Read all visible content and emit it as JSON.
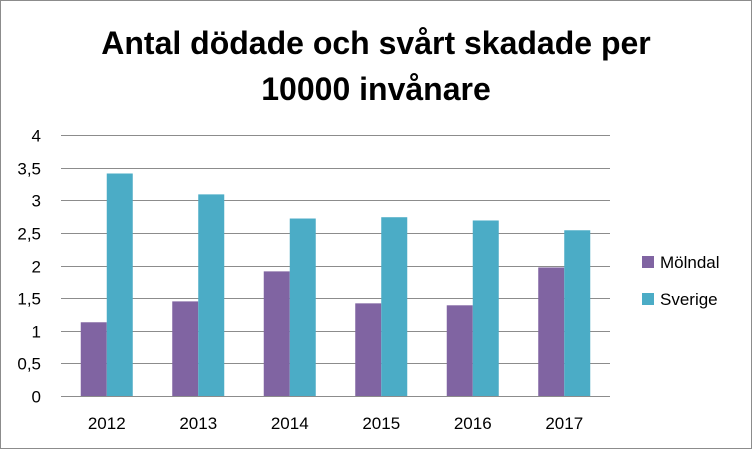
{
  "chart_data": {
    "type": "bar",
    "title_line1": "Antal dödade och svårt skadade per",
    "title_line2": "10000 invånare",
    "categories": [
      "2012",
      "2013",
      "2014",
      "2015",
      "2016",
      "2017"
    ],
    "series": [
      {
        "name": "Mölndal",
        "color": "#8064a2",
        "values": [
          1.13,
          1.45,
          1.91,
          1.42,
          1.39,
          1.97
        ]
      },
      {
        "name": "Sverige",
        "color": "#4bacc6",
        "values": [
          3.41,
          3.09,
          2.72,
          2.74,
          2.69,
          2.54
        ]
      }
    ],
    "yticks": [
      "0",
      "0,5",
      "1",
      "1,5",
      "2",
      "2,5",
      "3",
      "3,5",
      "4"
    ],
    "ylim": [
      0,
      4
    ],
    "grid": true,
    "legend_position": "right"
  }
}
